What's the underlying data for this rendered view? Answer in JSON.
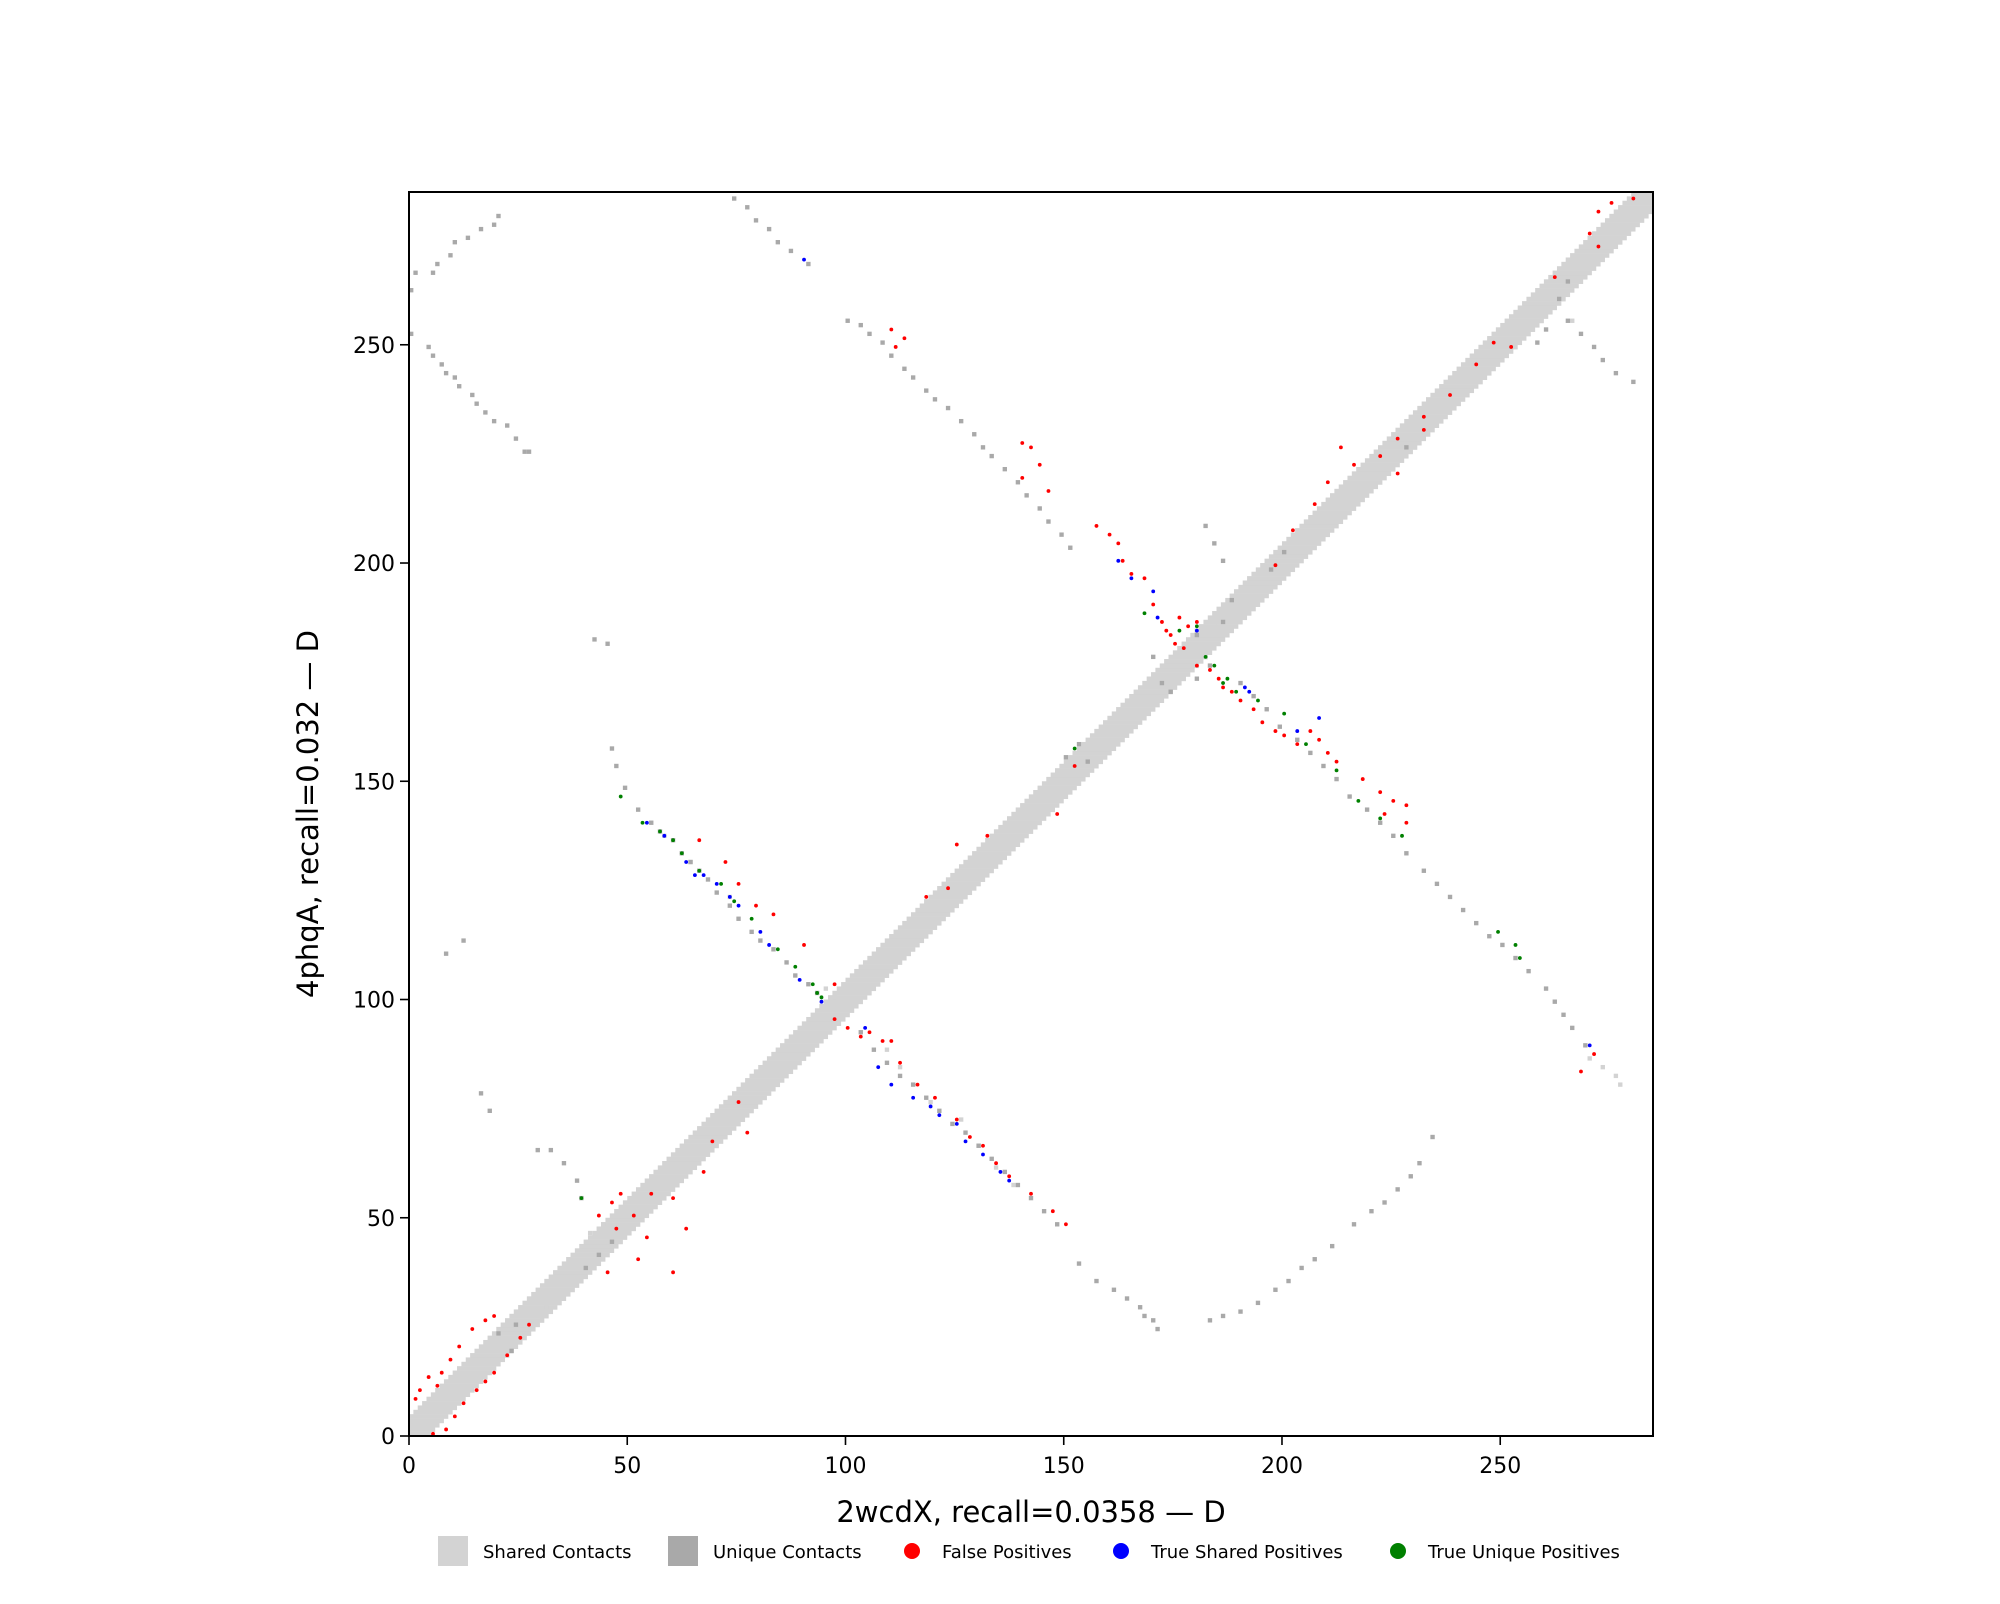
{
  "chart_data": {
    "type": "heatmap",
    "subtype": "contact-map-overlay",
    "xlabel": "2wcdX, recall=0.0358 — D",
    "ylabel": "4phqA, recall=0.032 — D",
    "xlim": [
      0,
      285
    ],
    "ylim": [
      0,
      285
    ],
    "xticks": [
      0,
      50,
      100,
      150,
      200,
      250
    ],
    "yticks": [
      0,
      50,
      100,
      150,
      200,
      250
    ],
    "xtick_labels": [
      "0",
      "50",
      "100",
      "150",
      "200",
      "250"
    ],
    "ytick_labels": [
      "0",
      "50",
      "100",
      "150",
      "200",
      "250"
    ],
    "legend_position": "bottom-center",
    "legend": [
      {
        "label": "Shared Contacts",
        "marker": "square",
        "color": "#d3d3d3"
      },
      {
        "label": "Unique Contacts",
        "marker": "square",
        "color": "#a9a9a9"
      },
      {
        "label": "False Positives",
        "marker": "circle",
        "color": "#ff0000"
      },
      {
        "label": "True Shared Positives",
        "marker": "circle",
        "color": "#0000ff"
      },
      {
        "label": "True Unique Positives",
        "marker": "circle",
        "color": "#008000"
      }
    ],
    "colors": {
      "shared": "#d3d3d3",
      "unique": "#a9a9a9",
      "false_pos": "#ff0000",
      "true_shared": "#0000ff",
      "true_unique": "#008000"
    },
    "diagonal_band": {
      "start": 0,
      "end": 284,
      "half_width": 4
    },
    "shared_contacts": [
      [
        95,
        102
      ],
      [
        97,
        100
      ],
      [
        185,
        186
      ],
      [
        270,
        86
      ],
      [
        273,
        84
      ],
      [
        276,
        82
      ],
      [
        277,
        80
      ],
      [
        30,
        27
      ],
      [
        31,
        29
      ],
      [
        33,
        30
      ],
      [
        41,
        46
      ],
      [
        43,
        47
      ],
      [
        44,
        48
      ],
      [
        58,
        137
      ],
      [
        64,
        131
      ],
      [
        73,
        123
      ],
      [
        109,
        88
      ],
      [
        112,
        84
      ],
      [
        119,
        76
      ],
      [
        126,
        72
      ],
      [
        130,
        66
      ],
      [
        134,
        61
      ],
      [
        138,
        57
      ],
      [
        266,
        255
      ]
    ],
    "unique_contacts": [
      [
        0,
        262
      ],
      [
        1,
        266
      ],
      [
        5,
        266
      ],
      [
        6,
        268
      ],
      [
        9,
        270
      ],
      [
        10,
        273
      ],
      [
        13,
        274
      ],
      [
        16,
        276
      ],
      [
        19,
        277
      ],
      [
        20,
        279
      ],
      [
        0,
        252
      ],
      [
        4,
        249
      ],
      [
        5,
        247
      ],
      [
        7,
        245
      ],
      [
        8,
        243
      ],
      [
        10,
        242
      ],
      [
        11,
        240
      ],
      [
        14,
        238
      ],
      [
        15,
        236
      ],
      [
        17,
        234
      ],
      [
        19,
        232
      ],
      [
        22,
        231
      ],
      [
        24,
        228
      ],
      [
        26,
        225
      ],
      [
        27,
        225
      ],
      [
        74,
        283
      ],
      [
        77,
        281
      ],
      [
        79,
        278
      ],
      [
        82,
        276
      ],
      [
        84,
        273
      ],
      [
        87,
        271
      ],
      [
        91,
        268
      ],
      [
        100,
        255
      ],
      [
        103,
        254
      ],
      [
        105,
        252
      ],
      [
        108,
        250
      ],
      [
        110,
        247
      ],
      [
        113,
        244
      ],
      [
        115,
        242
      ],
      [
        118,
        239
      ],
      [
        120,
        237
      ],
      [
        123,
        235
      ],
      [
        126,
        232
      ],
      [
        129,
        229
      ],
      [
        131,
        226
      ],
      [
        133,
        224
      ],
      [
        136,
        221
      ],
      [
        139,
        218
      ],
      [
        141,
        215
      ],
      [
        144,
        212
      ],
      [
        146,
        209
      ],
      [
        149,
        206
      ],
      [
        151,
        203
      ],
      [
        190,
        172
      ],
      [
        193,
        169
      ],
      [
        196,
        166
      ],
      [
        199,
        162
      ],
      [
        203,
        159
      ],
      [
        206,
        156
      ],
      [
        209,
        153
      ],
      [
        212,
        150
      ],
      [
        215,
        146
      ],
      [
        219,
        143
      ],
      [
        222,
        140
      ],
      [
        225,
        137
      ],
      [
        228,
        133
      ],
      [
        232,
        129
      ],
      [
        235,
        126
      ],
      [
        238,
        123
      ],
      [
        241,
        120
      ],
      [
        244,
        117
      ],
      [
        247,
        114
      ],
      [
        250,
        112
      ],
      [
        253,
        109
      ],
      [
        256,
        106
      ],
      [
        260,
        102
      ],
      [
        262,
        99
      ],
      [
        264,
        96
      ],
      [
        266,
        93
      ],
      [
        269,
        89
      ],
      [
        46,
        157
      ],
      [
        47,
        153
      ],
      [
        49,
        148
      ],
      [
        52,
        143
      ],
      [
        55,
        140
      ],
      [
        57,
        138
      ],
      [
        60,
        136
      ],
      [
        62,
        133
      ],
      [
        64,
        131
      ],
      [
        66,
        129
      ],
      [
        68,
        127
      ],
      [
        70,
        124
      ],
      [
        73,
        121
      ],
      [
        75,
        118
      ],
      [
        78,
        115
      ],
      [
        80,
        113
      ],
      [
        83,
        111
      ],
      [
        86,
        108
      ],
      [
        88,
        105
      ],
      [
        91,
        103
      ],
      [
        93,
        101
      ],
      [
        103,
        92
      ],
      [
        106,
        88
      ],
      [
        109,
        85
      ],
      [
        112,
        82
      ],
      [
        115,
        80
      ],
      [
        118,
        77
      ],
      [
        121,
        74
      ],
      [
        124,
        71
      ],
      [
        127,
        69
      ],
      [
        130,
        66
      ],
      [
        133,
        63
      ],
      [
        136,
        60
      ],
      [
        139,
        57
      ],
      [
        142,
        54
      ],
      [
        145,
        51
      ],
      [
        148,
        48
      ],
      [
        153,
        39
      ],
      [
        157,
        35
      ],
      [
        161,
        33
      ],
      [
        164,
        31
      ],
      [
        167,
        29
      ],
      [
        168,
        27
      ],
      [
        170,
        26
      ],
      [
        171,
        24
      ],
      [
        183,
        26
      ],
      [
        186,
        27
      ],
      [
        190,
        28
      ],
      [
        194,
        30
      ],
      [
        198,
        33
      ],
      [
        201,
        35
      ],
      [
        204,
        38
      ],
      [
        207,
        40
      ],
      [
        211,
        43
      ],
      [
        216,
        48
      ],
      [
        220,
        51
      ],
      [
        223,
        53
      ],
      [
        226,
        56
      ],
      [
        229,
        59
      ],
      [
        231,
        62
      ],
      [
        234,
        68
      ],
      [
        8,
        110
      ],
      [
        12,
        113
      ],
      [
        16,
        78
      ],
      [
        18,
        74
      ],
      [
        29,
        65
      ],
      [
        32,
        65
      ],
      [
        35,
        62
      ],
      [
        38,
        58
      ],
      [
        39,
        54
      ],
      [
        42,
        182
      ],
      [
        45,
        181
      ],
      [
        182,
        208
      ],
      [
        184,
        204
      ],
      [
        186,
        200
      ],
      [
        180,
        183
      ],
      [
        170,
        178
      ],
      [
        172,
        172
      ],
      [
        174,
        170
      ],
      [
        265,
        255
      ],
      [
        268,
        252
      ],
      [
        271,
        249
      ],
      [
        273,
        246
      ],
      [
        276,
        243
      ],
      [
        280,
        241
      ],
      [
        40,
        38
      ],
      [
        43,
        41
      ],
      [
        46,
        44
      ],
      [
        20,
        23
      ],
      [
        24,
        25
      ],
      [
        150,
        155
      ],
      [
        153,
        158
      ],
      [
        155,
        154
      ],
      [
        180,
        173
      ],
      [
        183,
        176
      ],
      [
        186,
        186
      ],
      [
        188,
        191
      ],
      [
        197,
        198
      ],
      [
        200,
        202
      ],
      [
        260,
        253
      ],
      [
        258,
        250
      ],
      [
        263,
        260
      ],
      [
        265,
        264
      ],
      [
        228,
        226
      ],
      [
        23,
        19
      ]
    ],
    "false_positives": [
      [
        1,
        8
      ],
      [
        2,
        10
      ],
      [
        4,
        13
      ],
      [
        6,
        11
      ],
      [
        7,
        14
      ],
      [
        9,
        17
      ],
      [
        11,
        20
      ],
      [
        14,
        24
      ],
      [
        17,
        26
      ],
      [
        19,
        27
      ],
      [
        5,
        0
      ],
      [
        8,
        1
      ],
      [
        10,
        4
      ],
      [
        12,
        7
      ],
      [
        15,
        10
      ],
      [
        17,
        12
      ],
      [
        19,
        14
      ],
      [
        22,
        18
      ],
      [
        25,
        22
      ],
      [
        27,
        25
      ],
      [
        43,
        50
      ],
      [
        46,
        53
      ],
      [
        48,
        55
      ],
      [
        51,
        50
      ],
      [
        54,
        45
      ],
      [
        52,
        40
      ],
      [
        60,
        54
      ],
      [
        63,
        47
      ],
      [
        67,
        60
      ],
      [
        69,
        67
      ],
      [
        75,
        76
      ],
      [
        77,
        69
      ],
      [
        97,
        95
      ],
      [
        100,
        93
      ],
      [
        103,
        91
      ],
      [
        105,
        92
      ],
      [
        108,
        90
      ],
      [
        118,
        123
      ],
      [
        123,
        125
      ],
      [
        125,
        135
      ],
      [
        132,
        137
      ],
      [
        148,
        142
      ],
      [
        152,
        153
      ],
      [
        213,
        226
      ],
      [
        210,
        218
      ],
      [
        216,
        222
      ],
      [
        222,
        224
      ],
      [
        226,
        228
      ],
      [
        232,
        233
      ],
      [
        238,
        238
      ],
      [
        244,
        245
      ],
      [
        248,
        250
      ],
      [
        252,
        249
      ],
      [
        262,
        265
      ],
      [
        270,
        275
      ],
      [
        272,
        280
      ],
      [
        275,
        282
      ],
      [
        280,
        283
      ],
      [
        272,
        272
      ],
      [
        207,
        213
      ],
      [
        202,
        207
      ],
      [
        198,
        199
      ],
      [
        232,
        230
      ],
      [
        226,
        220
      ],
      [
        110,
        253
      ],
      [
        113,
        251
      ],
      [
        111,
        249
      ],
      [
        140,
        227
      ],
      [
        142,
        226
      ],
      [
        144,
        222
      ],
      [
        140,
        219
      ],
      [
        146,
        216
      ],
      [
        157,
        208
      ],
      [
        160,
        206
      ],
      [
        162,
        204
      ],
      [
        163,
        200
      ],
      [
        165,
        197
      ],
      [
        168,
        196
      ],
      [
        170,
        190
      ],
      [
        172,
        186
      ],
      [
        173,
        184
      ],
      [
        174,
        183
      ],
      [
        175,
        181
      ],
      [
        176,
        187
      ],
      [
        178,
        185
      ],
      [
        177,
        180
      ],
      [
        180,
        186
      ],
      [
        180,
        176
      ],
      [
        183,
        175
      ],
      [
        185,
        173
      ],
      [
        186,
        171
      ],
      [
        188,
        170
      ],
      [
        190,
        168
      ],
      [
        193,
        166
      ],
      [
        195,
        163
      ],
      [
        198,
        161
      ],
      [
        200,
        160
      ],
      [
        203,
        158
      ],
      [
        206,
        161
      ],
      [
        208,
        159
      ],
      [
        210,
        156
      ],
      [
        212,
        154
      ],
      [
        218,
        150
      ],
      [
        222,
        147
      ],
      [
        225,
        145
      ],
      [
        228,
        144
      ],
      [
        228,
        140
      ],
      [
        223,
        142
      ],
      [
        268,
        83
      ],
      [
        271,
        87
      ],
      [
        66,
        136
      ],
      [
        72,
        131
      ],
      [
        75,
        126
      ],
      [
        79,
        121
      ],
      [
        83,
        119
      ],
      [
        90,
        112
      ],
      [
        97,
        103
      ],
      [
        110,
        90
      ],
      [
        112,
        85
      ],
      [
        116,
        80
      ],
      [
        120,
        77
      ],
      [
        125,
        72
      ],
      [
        128,
        68
      ],
      [
        131,
        66
      ],
      [
        134,
        62
      ],
      [
        137,
        59
      ],
      [
        142,
        55
      ],
      [
        147,
        51
      ],
      [
        150,
        48
      ],
      [
        47,
        47
      ],
      [
        55,
        55
      ],
      [
        45,
        37
      ],
      [
        60,
        37
      ]
    ],
    "true_shared_positives": [
      [
        54,
        140
      ],
      [
        58,
        137
      ],
      [
        63,
        131
      ],
      [
        65,
        128
      ],
      [
        67,
        128
      ],
      [
        70,
        126
      ],
      [
        73,
        123
      ],
      [
        75,
        121
      ],
      [
        80,
        115
      ],
      [
        82,
        112
      ],
      [
        89,
        104
      ],
      [
        94,
        99
      ],
      [
        104,
        93
      ],
      [
        107,
        84
      ],
      [
        110,
        80
      ],
      [
        115,
        77
      ],
      [
        119,
        75
      ],
      [
        121,
        73
      ],
      [
        125,
        71
      ],
      [
        127,
        67
      ],
      [
        131,
        64
      ],
      [
        135,
        60
      ],
      [
        137,
        58
      ],
      [
        162,
        200
      ],
      [
        165,
        196
      ],
      [
        170,
        193
      ],
      [
        171,
        187
      ],
      [
        180,
        184
      ],
      [
        191,
        171
      ],
      [
        192,
        170
      ],
      [
        203,
        161
      ],
      [
        208,
        164
      ],
      [
        270,
        89
      ],
      [
        90,
        269
      ]
    ],
    "true_unique_positives": [
      [
        48,
        146
      ],
      [
        53,
        140
      ],
      [
        57,
        138
      ],
      [
        60,
        136
      ],
      [
        62,
        133
      ],
      [
        66,
        129
      ],
      [
        71,
        126
      ],
      [
        74,
        122
      ],
      [
        78,
        118
      ],
      [
        84,
        111
      ],
      [
        88,
        107
      ],
      [
        92,
        103
      ],
      [
        93,
        101
      ],
      [
        94,
        100
      ],
      [
        39,
        54
      ],
      [
        168,
        188
      ],
      [
        176,
        184
      ],
      [
        180,
        185
      ],
      [
        182,
        178
      ],
      [
        184,
        176
      ],
      [
        186,
        172
      ],
      [
        187,
        173
      ],
      [
        189,
        170
      ],
      [
        194,
        168
      ],
      [
        200,
        165
      ],
      [
        205,
        158
      ],
      [
        212,
        152
      ],
      [
        217,
        145
      ],
      [
        222,
        141
      ],
      [
        227,
        137
      ],
      [
        249,
        115
      ],
      [
        253,
        112
      ],
      [
        254,
        109
      ],
      [
        152,
        157
      ]
    ]
  }
}
